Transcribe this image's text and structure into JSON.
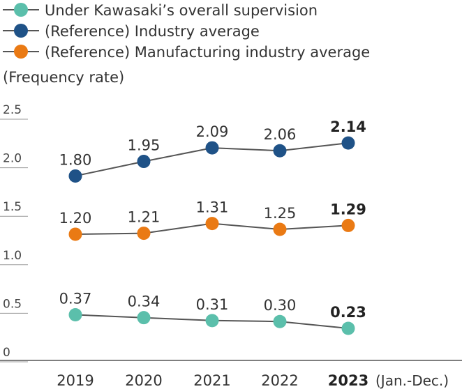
{
  "chart_data": {
    "type": "line",
    "ylabel": "(Frequency rate)",
    "categories": [
      "2019",
      "2020",
      "2021",
      "2022",
      "2023"
    ],
    "category_suffix": "(Jan.-Dec.)",
    "y_ticks": [
      "2.5",
      "2.0",
      "1.5",
      "1.0",
      "0.5",
      "0"
    ],
    "ylim": [
      0,
      2.5
    ],
    "grid": false,
    "legend_position": "top-left",
    "highlight_last": true,
    "series": [
      {
        "name": "Under Kawasaki’s overall supervision",
        "color": "#5bbfab",
        "values": [
          0.37,
          0.34,
          0.31,
          0.3,
          0.23
        ],
        "labels": [
          "0.37",
          "0.34",
          "0.31",
          "0.30",
          "0.23"
        ]
      },
      {
        "name": "(Reference) Industry average",
        "color": "#1f5287",
        "values": [
          1.8,
          1.95,
          2.09,
          2.06,
          2.14
        ],
        "labels": [
          "1.80",
          "1.95",
          "2.09",
          "2.06",
          "2.14"
        ]
      },
      {
        "name": "(Reference) Manufacturing industry average",
        "color": "#ea7a14",
        "values": [
          1.2,
          1.21,
          1.31,
          1.25,
          1.29
        ],
        "labels": [
          "1.20",
          "1.21",
          "1.31",
          "1.25",
          "1.29"
        ]
      }
    ]
  }
}
